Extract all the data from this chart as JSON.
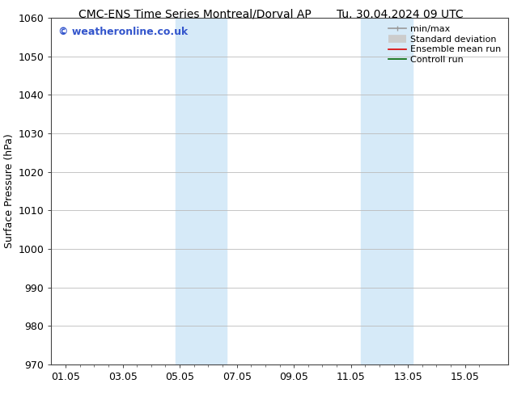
{
  "title_left": "CMC-ENS Time Series Montreal/Dorval AP",
  "title_right": "Tu. 30.04.2024 09 UTC",
  "ylabel": "Surface Pressure (hPa)",
  "ylim": [
    970,
    1060
  ],
  "yticks": [
    970,
    980,
    990,
    1000,
    1010,
    1020,
    1030,
    1040,
    1050,
    1060
  ],
  "xtick_labels": [
    "01.05",
    "03.05",
    "05.05",
    "07.05",
    "09.05",
    "11.05",
    "13.05",
    "15.05"
  ],
  "xtick_positions": [
    0,
    2,
    4,
    6,
    8,
    10,
    12,
    14
  ],
  "xlim": [
    -0.5,
    15.5
  ],
  "shaded_bands": [
    {
      "x_start": 3.85,
      "x_end": 5.65,
      "color": "#d6eaf8",
      "alpha": 1.0
    },
    {
      "x_start": 10.35,
      "x_end": 12.15,
      "color": "#d6eaf8",
      "alpha": 1.0
    }
  ],
  "watermark_text": "© weatheronline.co.uk",
  "watermark_color": "#3355cc",
  "watermark_fontsize": 9,
  "legend_items": [
    {
      "label": "min/max",
      "color": "#999999",
      "linestyle": "-",
      "linewidth": 1.2
    },
    {
      "label": "Standard deviation",
      "color": "#cccccc",
      "linestyle": "-",
      "linewidth": 7
    },
    {
      "label": "Ensemble mean run",
      "color": "#dd0000",
      "linestyle": "-",
      "linewidth": 1.2
    },
    {
      "label": "Controll run",
      "color": "#006600",
      "linestyle": "-",
      "linewidth": 1.2
    }
  ],
  "title_fontsize": 10,
  "axis_label_fontsize": 9,
  "tick_fontsize": 9,
  "legend_fontsize": 8,
  "background_color": "#ffffff",
  "plot_bg_color": "#ffffff",
  "grid_color": "#bbbbbb",
  "spine_color": "#444444"
}
